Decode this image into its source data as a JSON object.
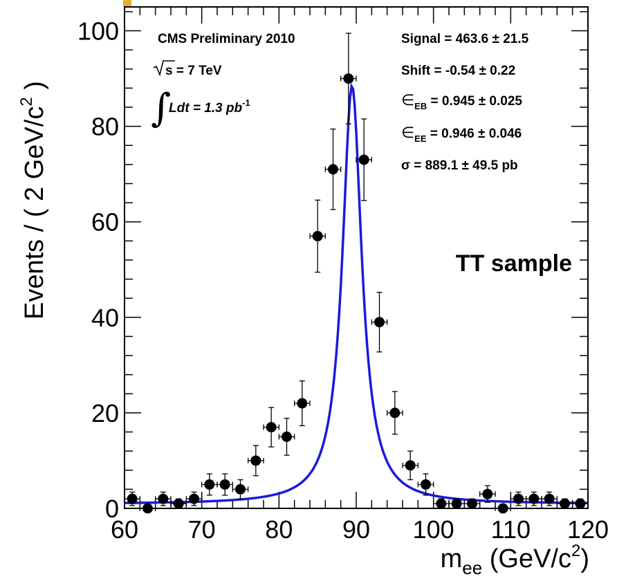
{
  "chart_data": {
    "type": "scatter",
    "xlabel": {
      "main": "m",
      "sub": "ee",
      "rest": " (GeV/c",
      "sup": "2",
      "end": ")"
    },
    "ylabel": {
      "main": "Events / ( 2 GeV/c",
      "sup": "2",
      "end": " )"
    },
    "xlim": [
      60,
      120
    ],
    "ylim": [
      0,
      105
    ],
    "x_ticks": [
      60,
      70,
      80,
      90,
      100,
      110,
      120
    ],
    "y_ticks": [
      0,
      20,
      40,
      60,
      80,
      100
    ],
    "series": [
      {
        "x": [
          61,
          63,
          65,
          67,
          69,
          71,
          73,
          75,
          77,
          79,
          81,
          83,
          85,
          87,
          89,
          91,
          93,
          95,
          97,
          99,
          101,
          103,
          105,
          107,
          109,
          111,
          113,
          115,
          117,
          119
        ],
        "y": [
          2,
          0,
          2,
          1,
          2,
          5,
          5,
          4,
          10,
          17,
          15,
          22,
          57,
          71,
          90,
          73,
          39,
          20,
          9,
          5,
          1,
          1,
          1,
          3,
          0,
          2,
          2,
          2,
          1,
          1
        ],
        "x_err": 1
      }
    ],
    "fit": {
      "type": "breit-wigner",
      "peak": 88.5,
      "peak_x": 89.46,
      "width": 3.05,
      "background": 0.9
    },
    "annotations": {
      "cms": "CMS Preliminary 2010",
      "sqrts": "s = 7 TeV",
      "lumi_main": "Ldt = 1.3 pb",
      "lumi_sup": "-1",
      "signal": "Signal = 463.6 ± 21.5",
      "shift": "Shift = -0.54 ± 0.22",
      "eb_sym": "∈",
      "eb_sub": "EB",
      "eb_val": " = 0.945 ± 0.025",
      "ee_sym": "∈",
      "ee_sub": "EE",
      "ee_val": " = 0.946 ± 0.046",
      "sigma": "σ = 889.1 ± 49.5 pb",
      "sample": "TT sample"
    },
    "colors": {
      "fit": "#1a1adc",
      "sample": "#ff2a10",
      "data": "#000000"
    }
  }
}
